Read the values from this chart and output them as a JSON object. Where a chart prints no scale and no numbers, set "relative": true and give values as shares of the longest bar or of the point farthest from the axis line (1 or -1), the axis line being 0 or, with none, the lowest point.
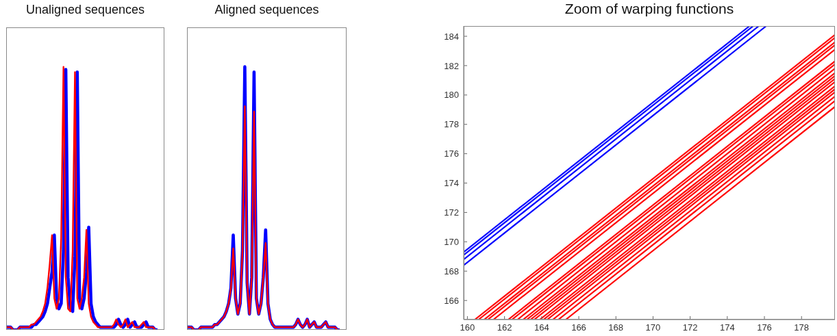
{
  "chart_data": [
    {
      "type": "line",
      "title": "Unaligned sequences",
      "relative": true,
      "categories": [
        null,
        null,
        null,
        null,
        null,
        null,
        null,
        null,
        null,
        null,
        null,
        null,
        null,
        null,
        null,
        null,
        null,
        null,
        null,
        null,
        null,
        null,
        null,
        null,
        null,
        null,
        null,
        null,
        null,
        null,
        null,
        null,
        null,
        null,
        null,
        null,
        null,
        null,
        null,
        null,
        null,
        null,
        null,
        null,
        null,
        null,
        null,
        null,
        null,
        null,
        null,
        null,
        null,
        null,
        null,
        null,
        null,
        null,
        null,
        null,
        null,
        null,
        null,
        null,
        null,
        null,
        null,
        null,
        null,
        null
      ],
      "series": [
        {
          "color": "#0000ff",
          "values": [
            0.01,
            0.01,
            0.01,
            0,
            0,
            0,
            0.01,
            0.01,
            0.01,
            0.01,
            0.01,
            0.01,
            0.02,
            0.02,
            0.03,
            0.04,
            0.05,
            0.07,
            0.1,
            0.16,
            0.22,
            0.36,
            0.12,
            0.08,
            0.1,
            0.3,
            0.99,
            0.2,
            0.08,
            0.07,
            0.28,
            0.98,
            0.12,
            0.08,
            0.12,
            0.22,
            0.39,
            0.1,
            0.05,
            0.03,
            0.02,
            0.01,
            0.01,
            0.01,
            0.01,
            0.01,
            0.01,
            0.01,
            0.02,
            0.04,
            0.02,
            0.01,
            0.02,
            0.04,
            0.01,
            0.02,
            0.03,
            0.01,
            0.01,
            0.01,
            0.02,
            0.03,
            0.01,
            0.01,
            0.01,
            0,
            0,
            null,
            null,
            null
          ]
        },
        {
          "color": "#ff0000",
          "values": [
            0.01,
            0.01,
            0.01,
            0,
            0,
            0,
            0.01,
            0.01,
            0.01,
            0.01,
            0.01,
            0.02,
            0.02,
            0.03,
            0.04,
            0.05,
            0.07,
            0.1,
            0.16,
            0.25,
            0.36,
            0.12,
            0.08,
            0.12,
            0.35,
            1,
            0.2,
            0.08,
            0.07,
            0.3,
            0.98,
            0.12,
            0.08,
            0.12,
            0.2,
            0.38,
            0.1,
            0.05,
            0.03,
            0.02,
            0.01,
            0.01,
            0.01,
            0.01,
            0.01,
            0.01,
            0.01,
            0.02,
            0.04,
            0.02,
            0.01,
            0.02,
            0.04,
            0.01,
            0.02,
            0.03,
            0.01,
            0.01,
            0.01,
            0.02,
            0.03,
            0.01,
            0.01,
            0.01,
            0.01,
            0,
            null,
            null,
            null,
            null
          ]
        }
      ]
    },
    {
      "type": "line",
      "title": "Aligned sequences",
      "relative": true,
      "categories": [
        null,
        null,
        null,
        null,
        null,
        null,
        null,
        null,
        null,
        null,
        null,
        null,
        null,
        null,
        null,
        null,
        null,
        null,
        null,
        null,
        null,
        null,
        null,
        null,
        null,
        null,
        null,
        null,
        null,
        null,
        null,
        null,
        null,
        null,
        null,
        null,
        null,
        null,
        null,
        null,
        null,
        null,
        null,
        null,
        null,
        null,
        null,
        null,
        null,
        null,
        null,
        null,
        null,
        null,
        null,
        null,
        null,
        null,
        null,
        null,
        null,
        null,
        null,
        null,
        null,
        null,
        null,
        null,
        null,
        null
      ],
      "series": [
        {
          "color": "#0000ff",
          "values": [
            0.01,
            0.01,
            0.01,
            0,
            0,
            0,
            0.01,
            0.01,
            0.01,
            0.01,
            0.01,
            0.01,
            0.02,
            0.02,
            0.03,
            0.04,
            0.05,
            0.07,
            0.1,
            0.16,
            0.36,
            0.12,
            0.06,
            0.1,
            0.3,
            1,
            0.18,
            0.06,
            0.2,
            0.98,
            0.12,
            0.06,
            0.1,
            0.2,
            0.38,
            0.1,
            0.04,
            0.02,
            0.01,
            0.01,
            0.01,
            0.01,
            0.01,
            0.01,
            0.01,
            0.01,
            0.01,
            0.02,
            0.04,
            0.02,
            0.01,
            0.02,
            0.04,
            0.01,
            0.02,
            0.03,
            0.01,
            0.01,
            0.01,
            0.02,
            0.03,
            0.01,
            0.01,
            0.01,
            0.01,
            0,
            0,
            null,
            null,
            null
          ]
        },
        {
          "color": "#ff0000",
          "values": [
            0.01,
            0.01,
            0.01,
            0,
            0,
            0,
            0.01,
            0.01,
            0.01,
            0.01,
            0.01,
            0.01,
            0.02,
            0.02,
            0.03,
            0.04,
            0.05,
            0.07,
            0.1,
            0.16,
            0.31,
            0.12,
            0.06,
            0.1,
            0.3,
            0.85,
            0.18,
            0.06,
            0.2,
            0.83,
            0.12,
            0.06,
            0.1,
            0.2,
            0.33,
            0.1,
            0.04,
            0.02,
            0.01,
            0.01,
            0.01,
            0.01,
            0.01,
            0.01,
            0.01,
            0.01,
            0.01,
            0.02,
            0.04,
            0.02,
            0.01,
            0.02,
            0.04,
            0.01,
            0.02,
            0.03,
            0.01,
            0.01,
            0.01,
            0.02,
            0.03,
            0.01,
            0.01,
            0.01,
            0.01,
            0,
            0,
            null,
            null,
            null
          ]
        }
      ]
    },
    {
      "type": "line",
      "title": "Zoom of warping functions",
      "xlim": [
        159.8,
        179.8
      ],
      "ylim": [
        164.7,
        184.7
      ],
      "xticks": [
        160,
        162,
        164,
        166,
        168,
        170,
        172,
        174,
        176,
        178
      ],
      "yticks": [
        166,
        168,
        170,
        172,
        174,
        176,
        178,
        180,
        182,
        184
      ],
      "series": [
        {
          "color": "#0000ff",
          "x": [
            159.8,
            175.2
          ],
          "values": [
            169.3,
            184.7
          ]
        },
        {
          "color": "#0000ff",
          "x": [
            159.8,
            175.4
          ],
          "values": [
            169.1,
            184.7
          ]
        },
        {
          "color": "#0000ff",
          "x": [
            159.8,
            175.7
          ],
          "values": [
            168.8,
            184.7
          ]
        },
        {
          "color": "#0000ff",
          "x": [
            159.8,
            176.1
          ],
          "values": [
            168.4,
            184.7
          ]
        },
        {
          "color": "#ff0000",
          "x": [
            160.4,
            179.8
          ],
          "values": [
            164.7,
            184.1
          ]
        },
        {
          "color": "#ff0000",
          "x": [
            160.6,
            179.8
          ],
          "values": [
            164.7,
            183.9
          ]
        },
        {
          "color": "#ff0000",
          "x": [
            160.9,
            179.8
          ],
          "values": [
            164.7,
            183.6
          ]
        },
        {
          "color": "#ff0000",
          "x": [
            161.1,
            179.8
          ],
          "values": [
            164.7,
            183.4
          ]
        },
        {
          "color": "#ff0000",
          "x": [
            161.4,
            179.8
          ],
          "values": [
            164.7,
            183.1
          ]
        },
        {
          "color": "#ff0000",
          "x": [
            162.2,
            179.8
          ],
          "values": [
            164.7,
            182.3
          ]
        },
        {
          "color": "#ff0000",
          "x": [
            162.4,
            179.8
          ],
          "values": [
            164.7,
            182.1
          ]
        },
        {
          "color": "#ff0000",
          "x": [
            162.7,
            179.8
          ],
          "values": [
            164.7,
            181.8
          ]
        },
        {
          "color": "#ff0000",
          "x": [
            163.0,
            179.8
          ],
          "values": [
            164.7,
            181.5
          ]
        },
        {
          "color": "#ff0000",
          "x": [
            163.2,
            179.8
          ],
          "values": [
            164.7,
            181.3
          ]
        },
        {
          "color": "#ff0000",
          "x": [
            163.4,
            179.8
          ],
          "values": [
            164.7,
            181.1
          ]
        },
        {
          "color": "#ff0000",
          "x": [
            163.6,
            179.8
          ],
          "values": [
            164.7,
            180.9
          ]
        },
        {
          "color": "#ff0000",
          "x": [
            163.9,
            179.8
          ],
          "values": [
            164.7,
            180.6
          ]
        },
        {
          "color": "#ff0000",
          "x": [
            164.1,
            179.8
          ],
          "values": [
            164.7,
            180.4
          ]
        },
        {
          "color": "#ff0000",
          "x": [
            164.3,
            179.8
          ],
          "values": [
            164.7,
            180.2
          ]
        },
        {
          "color": "#ff0000",
          "x": [
            164.6,
            179.8
          ],
          "values": [
            164.7,
            179.9
          ]
        },
        {
          "color": "#ff0000",
          "x": [
            164.9,
            179.8
          ],
          "values": [
            164.7,
            179.6
          ]
        },
        {
          "color": "#ff0000",
          "x": [
            165.3,
            179.8
          ],
          "values": [
            164.7,
            179.2
          ]
        }
      ]
    }
  ]
}
